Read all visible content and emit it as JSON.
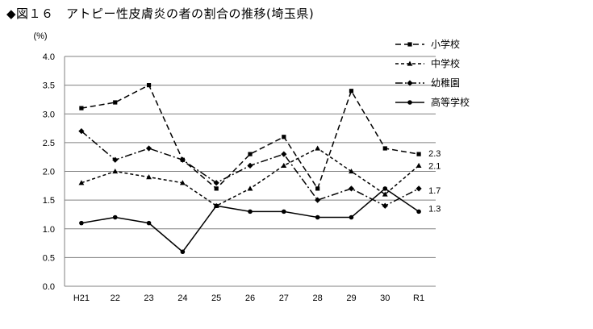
{
  "title": "◆図１６　アトピー性皮膚炎の者の割合の推移(埼玉県)",
  "chart_data": {
    "type": "line",
    "title": "◆図１６　アトピー性皮膚炎の者の割合の推移(埼玉県)",
    "ylabel": "(%)",
    "xlabel": "",
    "categories": [
      "H21",
      "22",
      "23",
      "24",
      "25",
      "26",
      "27",
      "28",
      "29",
      "30",
      "R1"
    ],
    "ylim": [
      0,
      4.0
    ],
    "yticks": [
      "0.0",
      "0.5",
      "1.0",
      "1.5",
      "2.0",
      "2.5",
      "3.0",
      "3.5",
      "4.0"
    ],
    "grid": "horizontal",
    "legend_position": "right",
    "series": [
      {
        "name": "小学校",
        "values": [
          3.1,
          3.2,
          3.5,
          2.2,
          1.7,
          2.3,
          2.6,
          1.7,
          3.4,
          2.4,
          2.3
        ],
        "end_label": "2.3",
        "dash": "dash",
        "marker": "square"
      },
      {
        "name": "中学校",
        "values": [
          1.8,
          2.0,
          1.9,
          1.8,
          1.4,
          1.7,
          2.1,
          2.4,
          2.0,
          1.6,
          2.1
        ],
        "end_label": "2.1",
        "dash": "short-dash",
        "marker": "triangle"
      },
      {
        "name": "幼稚園",
        "values": [
          2.7,
          2.2,
          2.4,
          2.2,
          1.8,
          2.1,
          2.3,
          1.5,
          1.7,
          1.4,
          1.7
        ],
        "end_label": "1.7",
        "dash": "dash-dot",
        "marker": "diamond"
      },
      {
        "name": "高等学校",
        "values": [
          1.1,
          1.2,
          1.1,
          0.6,
          1.4,
          1.3,
          1.3,
          1.2,
          1.2,
          1.7,
          1.3
        ],
        "end_label": "1.3",
        "dash": "solid",
        "marker": "circle"
      }
    ]
  }
}
